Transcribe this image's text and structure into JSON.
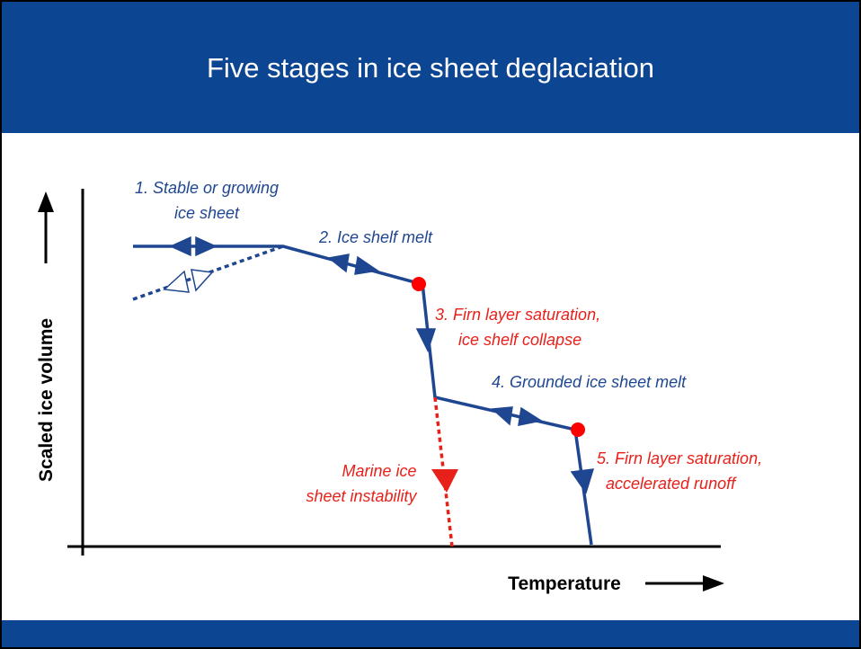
{
  "title": "Five stages in ice sheet deglaciation",
  "y_axis_label": "Scaled ice volume",
  "x_axis_label": "Temperature",
  "stages": [
    {
      "lines": [
        "1. Stable or growing",
        "ice sheet"
      ]
    },
    {
      "lines": [
        "2. Ice shelf melt"
      ]
    },
    {
      "lines": [
        "3. Firn layer saturation,",
        "ice shelf collapse"
      ]
    },
    {
      "lines": [
        "4. Grounded ice sheet melt"
      ]
    },
    {
      "lines": [
        "5. Firn layer saturation,",
        "accelerated runoff"
      ]
    }
  ],
  "marine": {
    "lines": [
      "Marine ice",
      "sheet instability"
    ]
  }
}
